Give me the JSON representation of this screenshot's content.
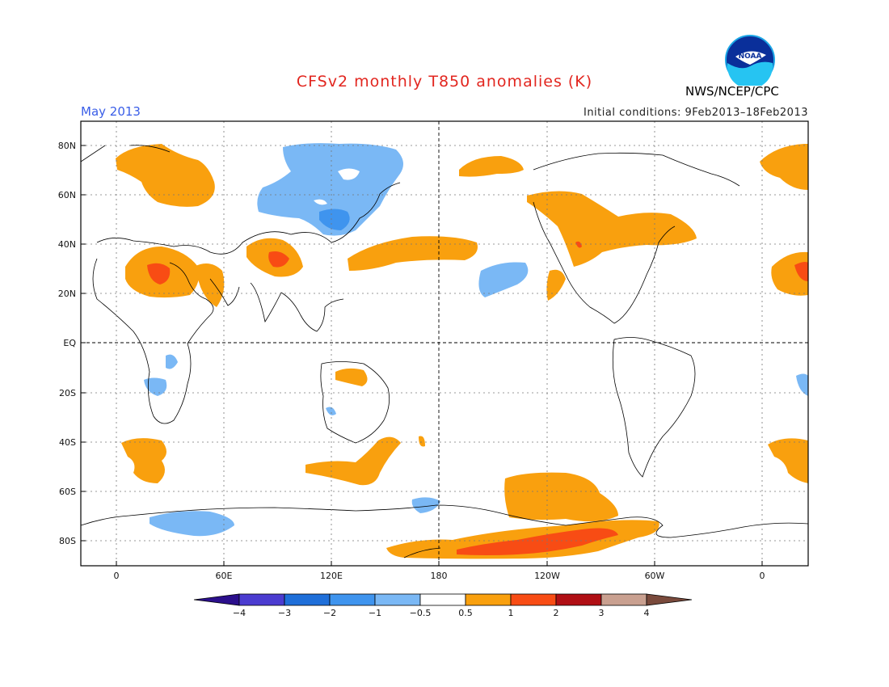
{
  "title": "CFSv2 monthly T850 anomalies (K)",
  "month": "May 2013",
  "initial_conditions": "Initial conditions: 9Feb2013–18Feb2013",
  "agency": "NWS/NCEP/CPC",
  "logo": {
    "text": "NOAA",
    "icon": "noaa-logo-icon"
  },
  "lat_labels": [
    "80N",
    "60N",
    "40N",
    "20N",
    "EQ",
    "20S",
    "40S",
    "60S",
    "80S"
  ],
  "lon_labels": [
    "0",
    "60E",
    "120E",
    "180",
    "120W",
    "60W",
    "0"
  ],
  "colorbar": {
    "labels": [
      "−4",
      "−3",
      "−2",
      "−1",
      "−0.5",
      "0.5",
      "1",
      "2",
      "3",
      "4"
    ],
    "colors": [
      "#2b0f8c",
      "#4b3cd0",
      "#1f6fd9",
      "#3f94ee",
      "#7ab8f5",
      "#ffffff",
      "#f9a00e",
      "#f84c14",
      "#b00f14",
      "#c9a090",
      "#7a4a3c"
    ]
  },
  "colors": {
    "warm1": "#f9a00e",
    "warm2": "#f84c14",
    "cool1": "#7ab8f5",
    "cool2": "#3f94ee",
    "title": "#e2261f",
    "month": "#3a5ee8"
  }
}
